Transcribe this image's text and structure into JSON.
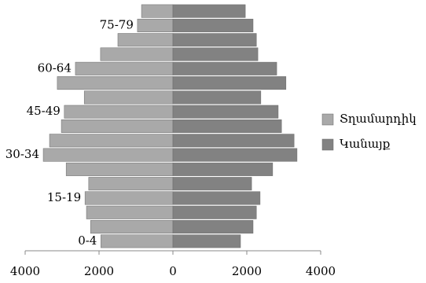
{
  "chart_data": {
    "type": "pyramid",
    "categories": [
      "0-4",
      null,
      null,
      "15-19",
      null,
      null,
      "30-34",
      null,
      null,
      "45-49",
      null,
      null,
      "60-64",
      null,
      null,
      "75-79",
      null
    ],
    "series": [
      {
        "name": "Տղամարդիկ",
        "color": "#a9a9a9",
        "values": [
          -1950,
          -2230,
          -2340,
          -2380,
          -2280,
          -2890,
          -3510,
          -3340,
          -3020,
          -2940,
          -2400,
          -3130,
          -2640,
          -1960,
          -1490,
          -960,
          -850
        ]
      },
      {
        "name": "Կանայք",
        "color": "#828282",
        "values": [
          1830,
          2170,
          2260,
          2360,
          2130,
          2700,
          3360,
          3280,
          2940,
          2850,
          2380,
          3060,
          2810,
          2300,
          2260,
          2170,
          1960
        ]
      }
    ],
    "xlim": [
      -4000,
      4000
    ],
    "xticks": [
      {
        "value": -4000,
        "label": "4000"
      },
      {
        "value": -2000,
        "label": "2000"
      },
      0,
      2000,
      4000
    ],
    "legend": "right"
  }
}
